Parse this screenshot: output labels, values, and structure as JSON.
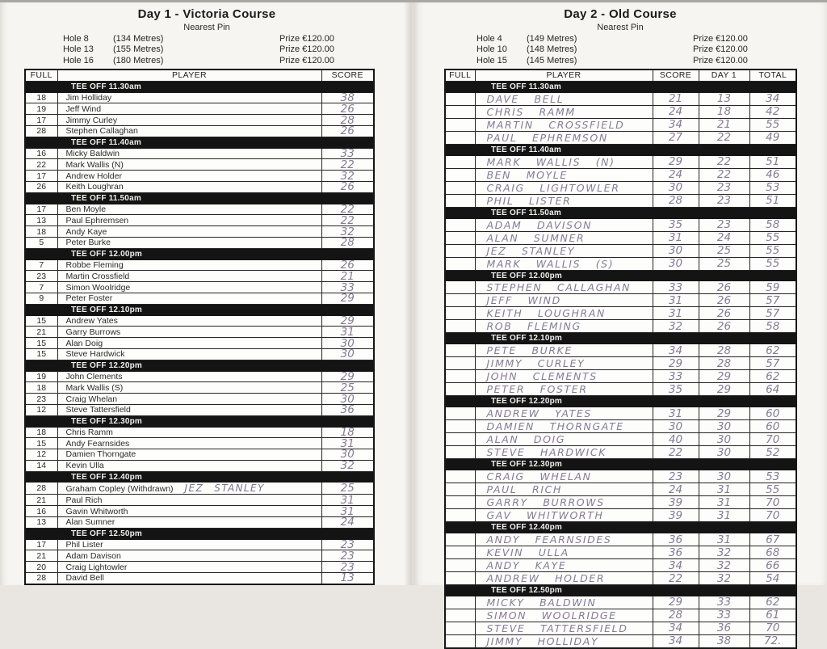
{
  "pages": [
    {
      "title": "Day 1 - Victoria Course",
      "subtitle": "Nearest Pin",
      "holes": [
        {
          "label": "Hole 8",
          "distance": "(134 Metres)",
          "prize": "Prize €120.00"
        },
        {
          "label": "Hole 13",
          "distance": "(155 Metres)",
          "prize": "Prize €120.00"
        },
        {
          "label": "Hole 16",
          "distance": "(180 Metres)",
          "prize": "Prize €120.00"
        }
      ],
      "columns": [
        "FULL",
        "PLAYER",
        "SCORE"
      ],
      "groups": [
        {
          "tee_off": "TEE OFF 11.30am",
          "rows": [
            {
              "full": "18",
              "player": "Jim Holliday",
              "score": "38"
            },
            {
              "full": "19",
              "player": "Jeff Wind",
              "score": "26"
            },
            {
              "full": "17",
              "player": "Jimmy Curley",
              "score": "28"
            },
            {
              "full": "28",
              "player": "Stephen Callaghan",
              "score": "26"
            }
          ]
        },
        {
          "tee_off": "TEE OFF 11.40am",
          "rows": [
            {
              "full": "16",
              "player": "Micky Baldwin",
              "score": "33"
            },
            {
              "full": "22",
              "player": "Mark Wallis (N)",
              "score": "22"
            },
            {
              "full": "17",
              "player": "Andrew Holder",
              "score": "32"
            },
            {
              "full": "26",
              "player": "Keith Loughran",
              "score": "26"
            }
          ]
        },
        {
          "tee_off": "TEE OFF 11.50am",
          "rows": [
            {
              "full": "17",
              "player": "Ben Moyle",
              "score": "22"
            },
            {
              "full": "13",
              "player": "Paul Ephremsen",
              "score": "22"
            },
            {
              "full": "18",
              "player": "Andy Kaye",
              "score": "32"
            },
            {
              "full": "5",
              "player": "Peter Burke",
              "score": "28"
            }
          ]
        },
        {
          "tee_off": "TEE OFF 12.00pm",
          "rows": [
            {
              "full": "7",
              "player": "Robbe Fleming",
              "score": "26"
            },
            {
              "full": "23",
              "player": "Martin Crossfield",
              "score": "21"
            },
            {
              "full": "7",
              "player": "Simon Woolridge",
              "score": "33"
            },
            {
              "full": "9",
              "player": "Peter Foster",
              "score": "29"
            }
          ]
        },
        {
          "tee_off": "TEE OFF 12.10pm",
          "rows": [
            {
              "full": "15",
              "player": "Andrew Yates",
              "score": "29"
            },
            {
              "full": "21",
              "player": "Garry Burrows",
              "score": "31"
            },
            {
              "full": "15",
              "player": "Alan Doig",
              "score": "30"
            },
            {
              "full": "15",
              "player": "Steve Hardwick",
              "score": "30"
            }
          ]
        },
        {
          "tee_off": "TEE OFF 12.20pm",
          "rows": [
            {
              "full": "19",
              "player": "John Clements",
              "score": "29"
            },
            {
              "full": "18",
              "player": "Mark Wallis (S)",
              "score": "25"
            },
            {
              "full": "23",
              "player": "Craig Whelan",
              "score": "30"
            },
            {
              "full": "12",
              "player": "Steve Tattersfield",
              "score": "36"
            }
          ]
        },
        {
          "tee_off": "TEE OFF 12.30pm",
          "rows": [
            {
              "full": "18",
              "player": "Chris Ramm",
              "score": "18"
            },
            {
              "full": "15",
              "player": "Andy Fearnsides",
              "score": "31"
            },
            {
              "full": "12",
              "player": "Damien Thorngate",
              "score": "30"
            },
            {
              "full": "14",
              "player": "Kevin Ulla",
              "score": "32"
            }
          ]
        },
        {
          "tee_off": "TEE OFF 12.40pm",
          "rows": [
            {
              "full": "28",
              "player": "Graham Copley (Withdrawn)",
              "annotation": "JEZ STANLEY",
              "score": "25"
            },
            {
              "full": "21",
              "player": "Paul Rich",
              "score": "31"
            },
            {
              "full": "16",
              "player": "Gavin Whitworth",
              "score": "31"
            },
            {
              "full": "13",
              "player": "Alan Sumner",
              "score": "24"
            }
          ]
        },
        {
          "tee_off": "TEE OFF 12.50pm",
          "rows": [
            {
              "full": "17",
              "player": "Phil Lister",
              "score": "23"
            },
            {
              "full": "21",
              "player": "Adam Davison",
              "score": "23"
            },
            {
              "full": "20",
              "player": "Craig Lightowler",
              "score": "23"
            },
            {
              "full": "28",
              "player": "David Bell",
              "score": "13"
            }
          ]
        }
      ]
    },
    {
      "title": "Day 2 - Old Course",
      "subtitle": "Nearest Pin",
      "holes": [
        {
          "label": "Hole 4",
          "distance": "(149 Metres)",
          "prize": "Prize €120.00"
        },
        {
          "label": "Hole 10",
          "distance": "(148 Metres)",
          "prize": "Prize €120.00"
        },
        {
          "label": "Hole 15",
          "distance": "(145 Metres)",
          "prize": "Prize €120.00"
        }
      ],
      "columns": [
        "FULL",
        "PLAYER",
        "SCORE",
        "DAY 1",
        "TOTAL"
      ],
      "groups": [
        {
          "tee_off": "TEE OFF 11.30am",
          "rows": [
            {
              "full": "",
              "player": "DAVE BELL",
              "score": "21",
              "day1": "13",
              "total": "34"
            },
            {
              "full": "",
              "player": "CHRIS RAMM",
              "score": "24",
              "day1": "18",
              "total": "42"
            },
            {
              "full": "",
              "player": "MARTIN CROSSFIELD",
              "score": "34",
              "day1": "21",
              "total": "55"
            },
            {
              "full": "",
              "player": "PAUL EPHREMSON",
              "score": "27",
              "day1": "22",
              "total": "49"
            }
          ]
        },
        {
          "tee_off": "TEE OFF 11.40am",
          "rows": [
            {
              "full": "",
              "player": "MARK WALLIS (N)",
              "score": "29",
              "day1": "22",
              "total": "51"
            },
            {
              "full": "",
              "player": "BEN MOYLE",
              "score": "24",
              "day1": "22",
              "total": "46"
            },
            {
              "full": "",
              "player": "CRAIG LIGHTOWLER",
              "score": "30",
              "day1": "23",
              "total": "53"
            },
            {
              "full": "",
              "player": "PHIL LISTER",
              "score": "28",
              "day1": "23",
              "total": "51"
            }
          ]
        },
        {
          "tee_off": "TEE OFF 11.50am",
          "rows": [
            {
              "full": "",
              "player": "ADAM DAVISON",
              "score": "35",
              "day1": "23",
              "total": "58"
            },
            {
              "full": "",
              "player": "ALAN SUMNER",
              "score": "31",
              "day1": "24",
              "total": "55"
            },
            {
              "full": "",
              "player": "JEZ STANLEY",
              "score": "30",
              "day1": "25",
              "total": "55"
            },
            {
              "full": "",
              "player": "MARK WALLIS (S)",
              "score": "30",
              "day1": "25",
              "total": "55"
            }
          ]
        },
        {
          "tee_off": "TEE OFF 12.00pm",
          "rows": [
            {
              "full": "",
              "player": "STEPHEN CALLAGHAN",
              "score": "33",
              "day1": "26",
              "total": "59"
            },
            {
              "full": "",
              "player": "JEFF WIND",
              "score": "31",
              "day1": "26",
              "total": "57"
            },
            {
              "full": "",
              "player": "KEITH LOUGHRAN",
              "score": "31",
              "day1": "26",
              "total": "57"
            },
            {
              "full": "",
              "player": "ROB FLEMING",
              "score": "32",
              "day1": "26",
              "total": "58"
            }
          ]
        },
        {
          "tee_off": "TEE OFF 12.10pm",
          "rows": [
            {
              "full": "",
              "player": "PETE BURKE",
              "score": "34",
              "day1": "28",
              "total": "62"
            },
            {
              "full": "",
              "player": "JIMMY CURLEY",
              "score": "29",
              "day1": "28",
              "total": "57"
            },
            {
              "full": "",
              "player": "JOHN CLEMENTS",
              "score": "33",
              "day1": "29",
              "total": "62"
            },
            {
              "full": "",
              "player": "PETER FOSTER",
              "score": "35",
              "day1": "29",
              "total": "64"
            }
          ]
        },
        {
          "tee_off": "TEE OFF 12.20pm",
          "rows": [
            {
              "full": "",
              "player": "ANDREW YATES",
              "score": "31",
              "day1": "29",
              "total": "60"
            },
            {
              "full": "",
              "player": "DAMIEN THORNGATE",
              "score": "30",
              "day1": "30",
              "total": "60"
            },
            {
              "full": "",
              "player": "ALAN DOIG",
              "score": "40",
              "day1": "30",
              "total": "70"
            },
            {
              "full": "",
              "player": "STEVE HARDWICK",
              "score": "22",
              "day1": "30",
              "total": "52"
            }
          ]
        },
        {
          "tee_off": "TEE OFF 12.30pm",
          "rows": [
            {
              "full": "",
              "player": "CRAIG WHELAN",
              "score": "23",
              "day1": "30",
              "total": "53"
            },
            {
              "full": "",
              "player": "PAUL RICH",
              "score": "24",
              "day1": "31",
              "total": "55"
            },
            {
              "full": "",
              "player": "GARRY BURROWS",
              "score": "39",
              "day1": "31",
              "total": "70"
            },
            {
              "full": "",
              "player": "GAV WHITWORTH",
              "score": "39",
              "day1": "31",
              "total": "70"
            }
          ]
        },
        {
          "tee_off": "TEE OFF 12.40pm",
          "rows": [
            {
              "full": "",
              "player": "ANDY FEARNSIDES",
              "score": "36",
              "day1": "31",
              "total": "67"
            },
            {
              "full": "",
              "player": "KEVIN ULLA",
              "score": "36",
              "day1": "32",
              "total": "68"
            },
            {
              "full": "",
              "player": "ANDY KAYE",
              "score": "34",
              "day1": "32",
              "total": "66"
            },
            {
              "full": "",
              "player": "ANDREW HOLDER",
              "score": "22",
              "day1": "32",
              "total": "54"
            }
          ]
        },
        {
          "tee_off": "TEE OFF 12.50pm",
          "rows": [
            {
              "full": "",
              "player": "MICKY BALDWIN",
              "score": "29",
              "day1": "33",
              "total": "62"
            },
            {
              "full": "",
              "player": "SIMON WOOLRIDGE",
              "score": "28",
              "day1": "33",
              "total": "61"
            },
            {
              "full": "",
              "player": "STEVE TATTERSFIELD",
              "score": "34",
              "day1": "36",
              "total": "70"
            },
            {
              "full": "",
              "player": "JIMMY HOLLIDAY",
              "score": "34",
              "day1": "38",
              "total": "72."
            }
          ]
        }
      ]
    }
  ]
}
